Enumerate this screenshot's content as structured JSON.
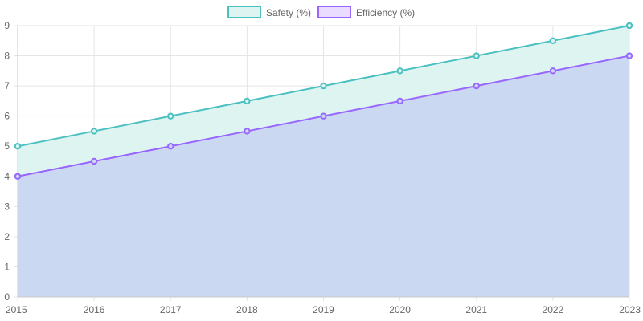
{
  "chart_data": {
    "type": "area",
    "x": [
      "2015",
      "2016",
      "2017",
      "2018",
      "2019",
      "2020",
      "2021",
      "2022",
      "2023"
    ],
    "series": [
      {
        "name": "Safety (%)",
        "values": [
          5,
          5.5,
          6,
          6.5,
          7,
          7.5,
          8,
          8.5,
          9
        ],
        "color": "#4bc0c0",
        "fill": "#ddf4f1"
      },
      {
        "name": "Efficiency (%)",
        "values": [
          4,
          4.5,
          5,
          5.5,
          6,
          6.5,
          7,
          7.5,
          8
        ],
        "color": "#9966ff",
        "fill": "#cbd8f2"
      }
    ],
    "yticks": [
      "0",
      "1",
      "2",
      "3",
      "4",
      "5",
      "6",
      "7",
      "8",
      "9"
    ],
    "ylim": [
      0,
      9
    ],
    "grid": true,
    "legend": "top-center",
    "title": "",
    "xlabel": "",
    "ylabel": ""
  }
}
